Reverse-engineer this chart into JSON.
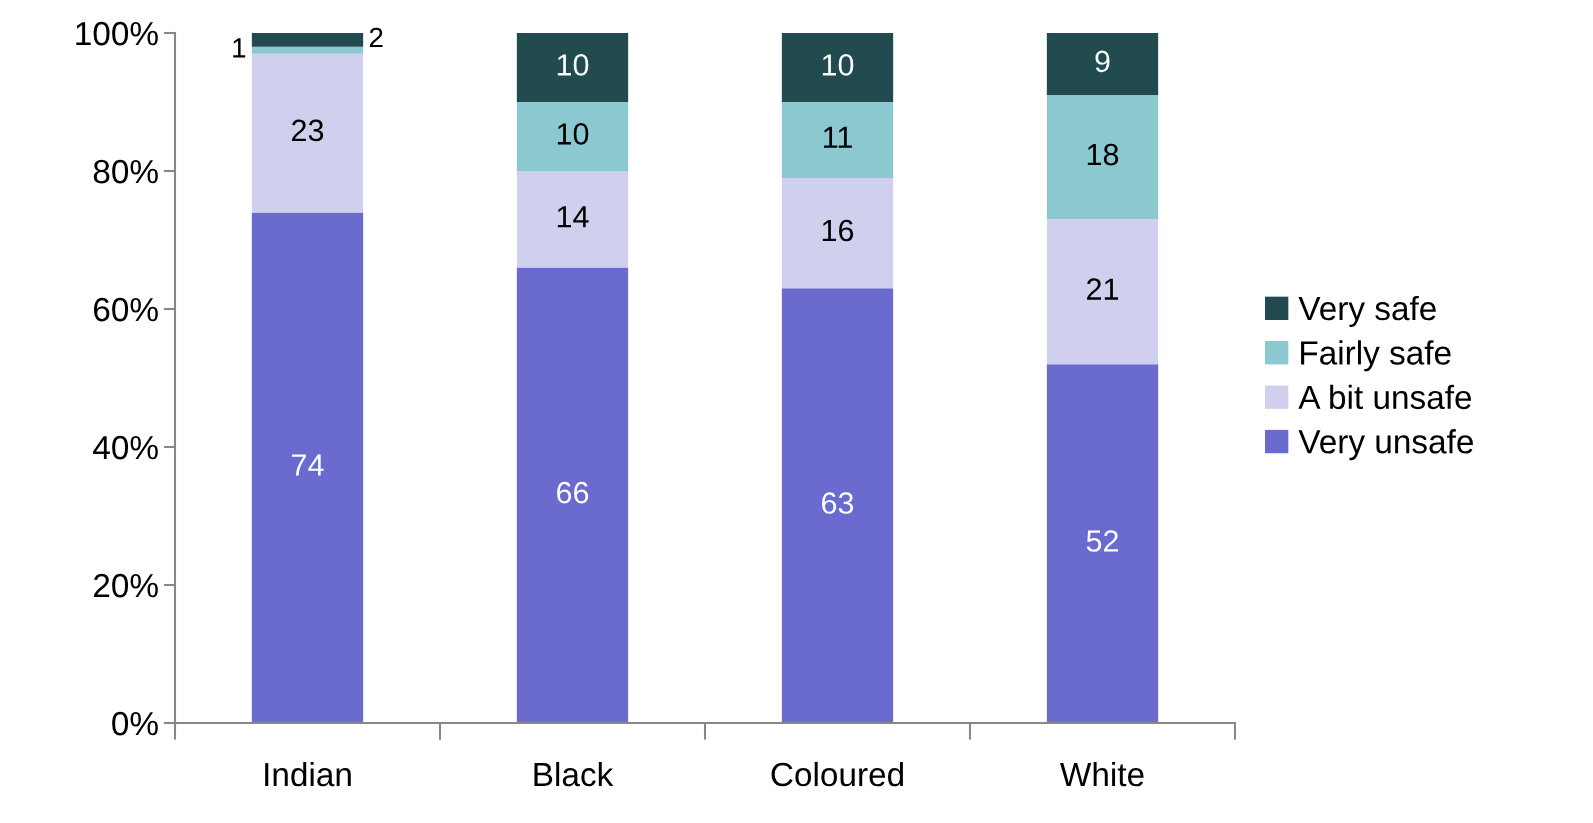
{
  "chart_data": {
    "type": "bar",
    "stacked": true,
    "categories": [
      "Indian",
      "Black",
      "Coloured",
      "White"
    ],
    "series": [
      {
        "name": "Very unsafe",
        "color": "#6b6bcf",
        "values": [
          74,
          66,
          63,
          52
        ]
      },
      {
        "name": "A bit unsafe",
        "color": "#d0d0ee",
        "values": [
          23,
          14,
          16,
          21
        ]
      },
      {
        "name": "Fairly safe",
        "color": "#8cc8cf",
        "values": [
          1,
          10,
          11,
          18
        ]
      },
      {
        "name": "Very safe",
        "color": "#214b4e",
        "values": [
          2,
          10,
          10,
          9
        ]
      }
    ],
    "ylim": [
      0,
      100
    ],
    "yticks": [
      {
        "value": 0,
        "label": "0%"
      },
      {
        "value": 20,
        "label": "20%"
      },
      {
        "value": 40,
        "label": "40%"
      },
      {
        "value": 60,
        "label": "60%"
      },
      {
        "value": 80,
        "label": "80%"
      },
      {
        "value": 100,
        "label": "100%"
      }
    ],
    "data_labels": true,
    "legend": "right",
    "grid": false
  }
}
